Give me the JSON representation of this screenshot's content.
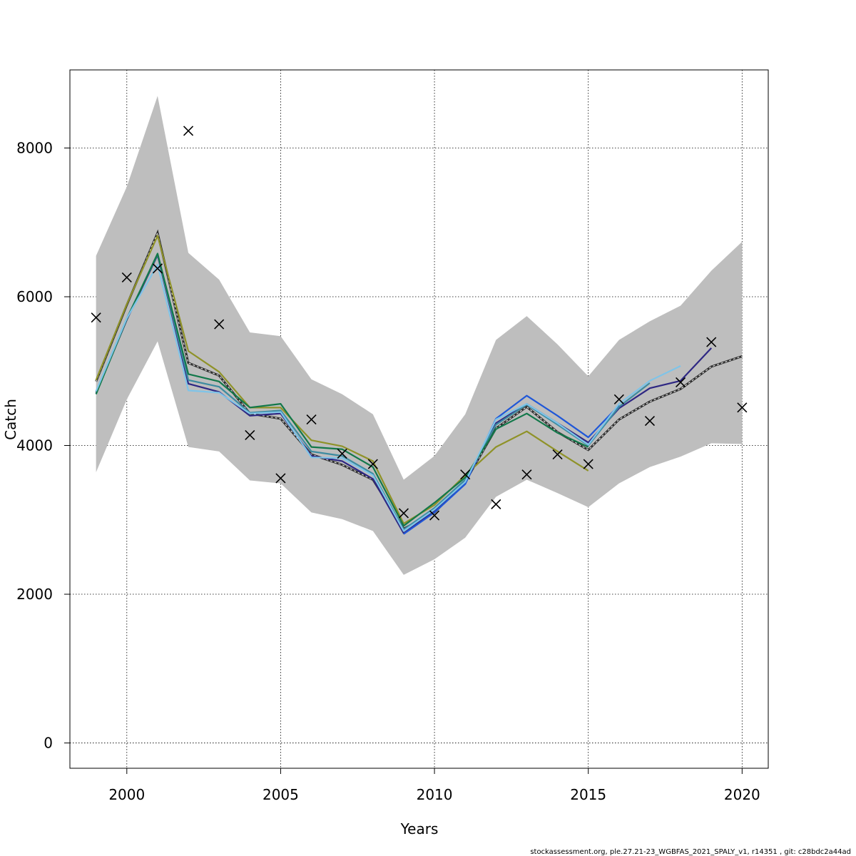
{
  "chart_data": {
    "type": "line",
    "xlabel": "Years",
    "ylabel": "Catch",
    "xlim": [
      1998.15,
      2020.85
    ],
    "ylim": [
      -340,
      9050
    ],
    "x_ticks": [
      2000,
      2005,
      2010,
      2015,
      2020
    ],
    "y_ticks": [
      0,
      2000,
      4000,
      6000,
      8000
    ],
    "x_tick_labels": [
      "2000",
      "2005",
      "2010",
      "2015",
      "2020"
    ],
    "y_tick_labels": [
      "0",
      "2000",
      "4000",
      "6000",
      "8000"
    ],
    "grid": true,
    "footer": "stockassessment.org, ple.27.21-23_WGBFAS_2021_SPALY_v1, r14351 , git: c28bdc2a44ad",
    "confidence_band": {
      "color": "#bebebe",
      "x": [
        1999,
        2000,
        2001,
        2002,
        2003,
        2004,
        2005,
        2006,
        2007,
        2008,
        2009,
        2010,
        2011,
        2012,
        2013,
        2014,
        2015,
        2016,
        2017,
        2018,
        2019,
        2020
      ],
      "upper": [
        6550,
        7480,
        8700,
        6590,
        6230,
        5520,
        5470,
        4890,
        4690,
        4420,
        3540,
        3860,
        4420,
        5420,
        5740,
        5360,
        4930,
        5420,
        5670,
        5880,
        6350,
        6740
      ],
      "lower": [
        3640,
        4620,
        5400,
        3980,
        3920,
        3530,
        3490,
        3100,
        3010,
        2850,
        2260,
        2470,
        2760,
        3310,
        3540,
        3360,
        3170,
        3490,
        3710,
        3850,
        4030,
        4020
      ]
    },
    "series": [
      {
        "color": "#2f2f2f",
        "style": "dashed",
        "x": [
          1999,
          2000,
          2001,
          2002,
          2003,
          2004,
          2005,
          2006,
          2007,
          2008,
          2009,
          2010,
          2011,
          2012,
          2013,
          2014,
          2015,
          2016,
          2017,
          2018,
          2019,
          2020
        ],
        "values": [
          4860,
          5890,
          6860,
          5110,
          4940,
          4430,
          4360,
          3880,
          3740,
          3540,
          2880,
          3100,
          3510,
          4230,
          4520,
          4180,
          3940,
          4350,
          4590,
          4760,
          5060,
          5200
        ]
      },
      {
        "color": "#8f9228",
        "style": "solid",
        "x": [
          1999,
          2000,
          2001,
          2002,
          2003,
          2004,
          2005,
          2006,
          2007,
          2008,
          2009,
          2010,
          2011,
          2012,
          2013,
          2014,
          2015
        ],
        "values": [
          4880,
          5900,
          6820,
          5270,
          4990,
          4510,
          4510,
          4070,
          3990,
          3790,
          2950,
          3200,
          3600,
          3980,
          4190,
          3920,
          3660
        ]
      },
      {
        "color": "#2e2783",
        "style": "solid",
        "x": [
          1999,
          2000,
          2001,
          2002,
          2003,
          2004,
          2005,
          2006,
          2007,
          2008,
          2009,
          2010,
          2011,
          2012,
          2013,
          2014,
          2015,
          2016,
          2017,
          2018,
          2019
        ],
        "values": [
          4700,
          5690,
          6560,
          4830,
          4720,
          4400,
          4430,
          3860,
          3790,
          3550,
          2820,
          3120,
          3500,
          4300,
          4560,
          4300,
          4040,
          4500,
          4770,
          4870,
          5310
        ]
      },
      {
        "color": "#1f57d8",
        "style": "solid",
        "x": [
          2009,
          2010,
          2011,
          2012,
          2013,
          2014,
          2015,
          2016
        ],
        "values": [
          2810,
          3100,
          3480,
          4360,
          4670,
          4400,
          4110,
          4540
        ]
      },
      {
        "color": "#3c8ba0",
        "style": "solid",
        "x": [
          1999,
          2000,
          2001,
          2002,
          2003,
          2004,
          2005,
          2006,
          2007,
          2008,
          2009,
          2010,
          2011,
          2012,
          2013,
          2014,
          2015,
          2016,
          2017
        ],
        "values": [
          4720,
          5710,
          6570,
          4880,
          4790,
          4440,
          4470,
          3920,
          3860,
          3620,
          2870,
          3160,
          3540,
          4280,
          4550,
          4280,
          4000,
          4520,
          4840
        ]
      },
      {
        "color": "#12784a",
        "style": "solid",
        "x": [
          1999,
          2000,
          2001,
          2002,
          2003,
          2004,
          2005,
          2006,
          2007,
          2008,
          2009,
          2010,
          2011,
          2012,
          2013,
          2014,
          2015
        ],
        "values": [
          4690,
          5700,
          6580,
          4960,
          4860,
          4510,
          4560,
          3980,
          3950,
          3710,
          2920,
          3230,
          3570,
          4220,
          4430,
          4170,
          3980
        ]
      },
      {
        "color": "#7fc4e8",
        "style": "solid",
        "x": [
          1999,
          2000,
          2001,
          2002,
          2003,
          2004,
          2005,
          2006,
          2007,
          2008,
          2009,
          2010,
          2011,
          2012,
          2013,
          2014,
          2015,
          2016,
          2017,
          2018
        ],
        "values": [
          4730,
          5710,
          6430,
          4740,
          4710,
          4430,
          4450,
          3840,
          3830,
          3600,
          2850,
          3140,
          3510,
          4350,
          4560,
          4300,
          4010,
          4560,
          4870,
          5070
        ]
      }
    ],
    "observations": {
      "marker": "x",
      "x": [
        1999,
        2000,
        2001,
        2002,
        2003,
        2004,
        2005,
        2006,
        2007,
        2008,
        2009,
        2010,
        2011,
        2012,
        2013,
        2014,
        2015,
        2016,
        2017,
        2018,
        2019,
        2020
      ],
      "values": [
        5720,
        6260,
        6380,
        8230,
        5630,
        4140,
        3560,
        4350,
        3890,
        3750,
        3090,
        3060,
        3610,
        3210,
        3610,
        3880,
        3750,
        4620,
        4330,
        4850,
        5390,
        4510
      ]
    }
  }
}
